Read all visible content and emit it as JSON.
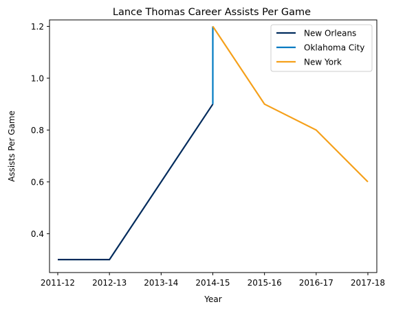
{
  "chart_data": {
    "type": "line",
    "title": "Lance Thomas Career Assists Per Game",
    "xlabel": "Year",
    "ylabel": "Assists Per Game",
    "categories": [
      "2011-12",
      "2012-13",
      "2013-14",
      "2014-15",
      "2015-16",
      "2016-17",
      "2017-18"
    ],
    "ylim": [
      0.25,
      1.225
    ],
    "yticks": [
      "0.4",
      "0.6",
      "0.8",
      "1.0",
      "1.2"
    ],
    "ytick_values": [
      0.4,
      0.6,
      0.8,
      1.0,
      1.2
    ],
    "grid": false,
    "legend_position": "top-right",
    "series": [
      {
        "name": "New Orleans",
        "color": "#002B5C",
        "points": [
          [
            "2011-12",
            0.3
          ],
          [
            "2012-13",
            0.3
          ],
          [
            "2014-15",
            0.9
          ]
        ]
      },
      {
        "name": "Oklahoma City",
        "color": "#007AC1",
        "points": [
          [
            "2014-15",
            0.9
          ],
          [
            "2014-15",
            1.2
          ]
        ]
      },
      {
        "name": "New York",
        "color": "#F5A01A",
        "points": [
          [
            "2014-15",
            1.2
          ],
          [
            "2015-16",
            0.9
          ],
          [
            "2016-17",
            0.8
          ],
          [
            "2017-18",
            0.6
          ]
        ]
      }
    ]
  }
}
